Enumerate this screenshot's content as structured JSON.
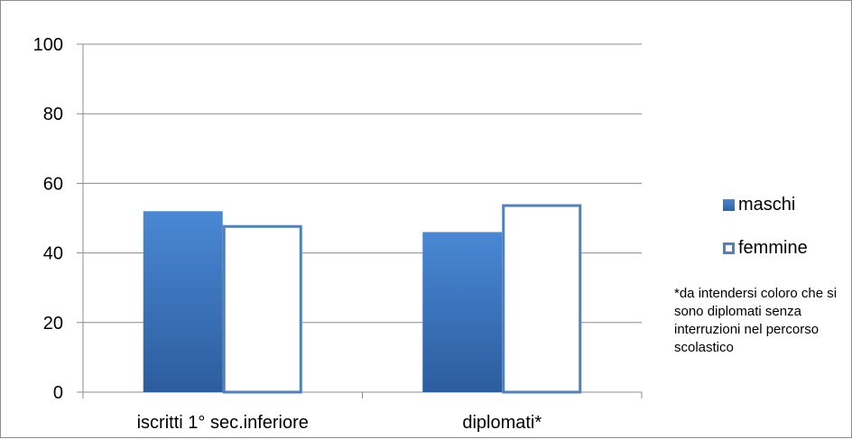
{
  "chart_data": {
    "type": "bar",
    "categories": [
      "iscritti 1° sec.inferiore",
      "diplomati*"
    ],
    "series": [
      {
        "name": "maschi",
        "values": [
          52,
          46
        ]
      },
      {
        "name": "femmine",
        "values": [
          48,
          54
        ]
      }
    ],
    "ylim": [
      0,
      100
    ],
    "yticks": [
      0,
      20,
      40,
      60,
      80,
      100
    ],
    "grid": true,
    "legend_position": "right",
    "colors": {
      "maschi": "#3a6fb8",
      "femmine_border": "#4f81bd",
      "femmine_fill": "#ffffff"
    },
    "footnote": "*da intendersi coloro che si sono diplomati senza interruzioni nel percorso scolastico"
  }
}
